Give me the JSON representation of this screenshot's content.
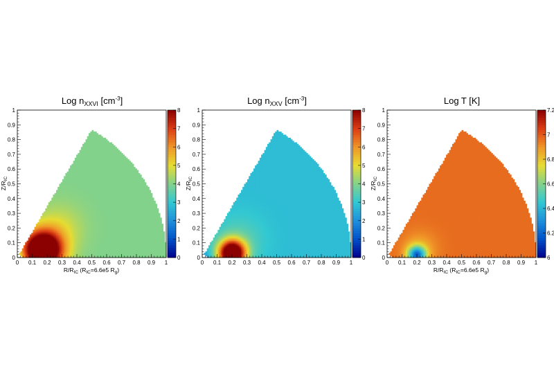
{
  "chart_data": [
    {
      "type": "heatmap",
      "title": {
        "base": "Log n",
        "sub": "XXVI",
        "unit_pre": " [cm",
        "unit_sup": "-3",
        "unit_post": "]"
      },
      "xlabel": {
        "base": "R/R",
        "sub1": "IC",
        "mid": " (R",
        "sub2": "IC",
        "post": "=6.6e5 R",
        "sub3": "g",
        "end": ")"
      },
      "ylabel": {
        "base": "Z/R",
        "sub": "IC"
      },
      "xlim": [
        0,
        1
      ],
      "ylim": [
        0,
        1
      ],
      "x_ticks": [
        "0",
        "0.1",
        "0.2",
        "0.3",
        "0.4",
        "0.5",
        "0.6",
        "0.7",
        "0.8",
        "0.9",
        "1"
      ],
      "y_ticks": [
        "0",
        "0.1",
        "0.2",
        "0.3",
        "0.4",
        "0.5",
        "0.6",
        "0.7",
        "0.8",
        "0.9",
        "1"
      ],
      "colorbar": {
        "range": [
          0,
          8
        ],
        "ticks": [
          "0",
          "1",
          "2",
          "3",
          "4",
          "5",
          "6",
          "7",
          "8"
        ]
      },
      "domain": {
        "shape": "wedge",
        "max_angle_deg": 60,
        "outer_radius": 1.0,
        "inner_radius": 0.03
      },
      "field": {
        "background": 4.0,
        "peak": 6.9,
        "peak_at": [
          0.17,
          0.05
        ],
        "peak_width": 0.13,
        "halo": 0.8,
        "halo_at": [
          0.28,
          0.2
        ],
        "halo_width": 0.16,
        "inner_low": 1.4
      }
    },
    {
      "type": "heatmap",
      "title": {
        "base": "Log n",
        "sub": "XXV",
        "unit_pre": " [cm",
        "unit_sup": "-3",
        "unit_post": "]"
      },
      "xlabel": {
        "base": "",
        "sub1": "",
        "mid": "",
        "sub2": "",
        "post": "",
        "sub3": "",
        "end": ""
      },
      "ylabel": {
        "base": "Z/R",
        "sub": "IC"
      },
      "xlim": [
        0,
        1
      ],
      "ylim": [
        0,
        1
      ],
      "x_ticks": [
        "0",
        "0.1",
        "0.2",
        "0.3",
        "0.4",
        "0.5",
        "0.6",
        "0.7",
        "0.8",
        "0.9",
        "1"
      ],
      "y_ticks": [
        "0",
        "0.1",
        "0.2",
        "0.3",
        "0.4",
        "0.5",
        "0.6",
        "0.7",
        "0.8",
        "0.9",
        "1"
      ],
      "colorbar": {
        "range": [
          0,
          8
        ],
        "ticks": [
          "0",
          "1",
          "2",
          "3",
          "4",
          "5",
          "6",
          "7",
          "8"
        ]
      },
      "domain": {
        "shape": "wedge",
        "max_angle_deg": 60,
        "outer_radius": 1.0,
        "inner_radius": 0.03
      },
      "field": {
        "background": 2.8,
        "peak": 7.2,
        "peak_at": [
          0.2,
          0.03
        ],
        "peak_width": 0.09,
        "halo": 0.7,
        "halo_at": [
          0.25,
          0.12
        ],
        "halo_width": 0.17,
        "inner_low": 1.6
      }
    },
    {
      "type": "heatmap",
      "title": {
        "base": "Log T [K]",
        "sub": "",
        "unit_pre": "",
        "unit_sup": "",
        "unit_post": ""
      },
      "xlabel": {
        "base": "R/R",
        "sub1": "IC",
        "mid": " (R",
        "sub2": "IC",
        "post": "=6.6e5 R",
        "sub3": "g",
        "end": ")"
      },
      "ylabel": {
        "base": "Z/R",
        "sub": "IC"
      },
      "xlim": [
        0,
        1
      ],
      "ylim": [
        0,
        1
      ],
      "x_ticks": [
        "0",
        "0.1",
        "0.2",
        "0.3",
        "0.4",
        "0.5",
        "0.6",
        "0.7",
        "0.8",
        "0.9",
        "1"
      ],
      "y_ticks": [
        "0",
        "0.1",
        "0.2",
        "0.3",
        "0.4",
        "0.5",
        "0.6",
        "0.7",
        "0.8",
        "0.9",
        "1"
      ],
      "colorbar": {
        "range": [
          6.0,
          7.2
        ],
        "ticks": [
          "6",
          "6.2",
          "6.4",
          "6.6",
          "6.8",
          "7",
          "7.2"
        ]
      },
      "domain": {
        "shape": "wedge",
        "max_angle_deg": 60,
        "outer_radius": 1.0,
        "inner_radius": 0.03
      },
      "field": {
        "background": 6.97,
        "peak": -0.7,
        "peak_at": [
          0.2,
          0.02
        ],
        "peak_width": 0.06,
        "halo": -0.1,
        "halo_at": [
          0.22,
          0.06
        ],
        "halo_width": 0.12,
        "inner_low": 0.0
      }
    }
  ],
  "colors": {
    "palette": [
      "#00008b",
      "#0050c8",
      "#1e90dc",
      "#32c8d2",
      "#82d28c",
      "#e6dc32",
      "#f09628",
      "#dc3c14",
      "#8b0000"
    ],
    "frame": "#000000",
    "background": "#ffffff"
  }
}
